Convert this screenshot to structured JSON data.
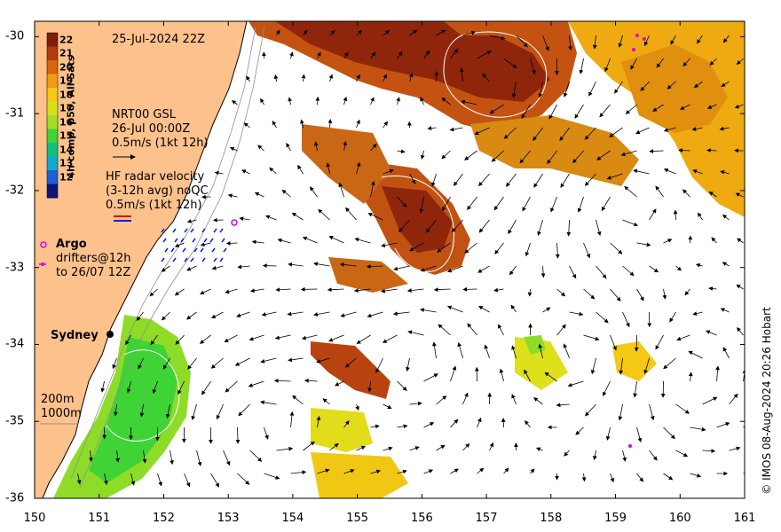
{
  "map": {
    "timestamp": "25-Jul-2024 22Z",
    "x_ticks": [
      "150",
      "151",
      "152",
      "153",
      "154",
      "155",
      "156",
      "157",
      "158",
      "159",
      "160",
      "161"
    ],
    "y_ticks": [
      "-30",
      "-31",
      "-32",
      "-33",
      "-34",
      "-35",
      "-36"
    ],
    "lon_range": [
      150,
      161
    ],
    "lat_range": [
      -36,
      -29.8
    ]
  },
  "colorbar": {
    "title": "4h comp, p50, All Sats",
    "ticks": [
      "22",
      "21",
      "20",
      "19",
      "18",
      "17",
      "16",
      "15",
      "14",
      "13",
      "12"
    ],
    "colors": [
      "#7f1d0a",
      "#b33a0d",
      "#d9650f",
      "#ef9d10",
      "#f5c814",
      "#d9e01a",
      "#a2de22",
      "#3fd336",
      "#0fc080",
      "#13a8d2",
      "#1f5fd7",
      "#0a1678"
    ]
  },
  "legend": {
    "gsl_line1": "NRT00 GSL",
    "gsl_line2": "26-Jul 00:00Z",
    "gsl_scale": "0.5m/s (1kt 12h)",
    "hf_line1": "HF radar velocity",
    "hf_line2": "(3-12h avg) noQC",
    "hf_scale": "0.5m/s (1kt 12h)",
    "argo_label": "Argo",
    "drifters_line1": "drifters@12h",
    "drifters_line2": "to 26/07 12Z",
    "depth_200": "200m",
    "depth_1000": "1000m"
  },
  "places": {
    "sydney": "Sydney"
  },
  "credit": "© IMOS 08-Aug-2024 20:26 Hobart"
}
